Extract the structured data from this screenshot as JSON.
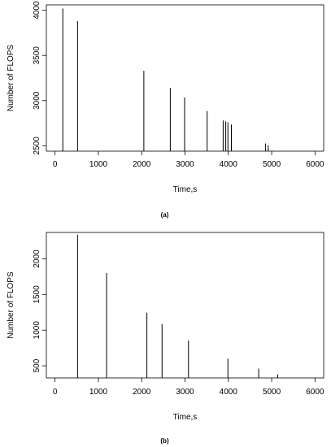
{
  "chart_data": [
    {
      "type": "bar",
      "caption": "(a)",
      "xlabel": "Time,s",
      "ylabel": "Number of FLOPS",
      "xlim": [
        -200,
        6200
      ],
      "ylim": [
        2440,
        4060
      ],
      "xticks": [
        0,
        1000,
        2000,
        3000,
        4000,
        5000,
        6000
      ],
      "yticks": [
        2500,
        3000,
        3500,
        4000
      ],
      "x": [
        180,
        520,
        2050,
        2660,
        2990,
        3510,
        3880,
        3940,
        3990,
        4070,
        4860,
        4920
      ],
      "values": [
        4020,
        3880,
        3330,
        3140,
        3035,
        2885,
        2780,
        2770,
        2760,
        2735,
        2525,
        2505
      ]
    },
    {
      "type": "bar",
      "caption": "(b)",
      "xlabel": "Time,s",
      "ylabel": "Number of FLOPS",
      "xlim": [
        -200,
        6200
      ],
      "ylim": [
        330,
        2370
      ],
      "xticks": [
        0,
        1000,
        2000,
        3000,
        4000,
        5000,
        6000
      ],
      "yticks": [
        500,
        1000,
        1500,
        2000
      ],
      "x": [
        520,
        1190,
        2120,
        2470,
        3080,
        3990,
        4700,
        5140
      ],
      "values": [
        2340,
        1800,
        1245,
        1085,
        855,
        600,
        460,
        380
      ]
    }
  ]
}
